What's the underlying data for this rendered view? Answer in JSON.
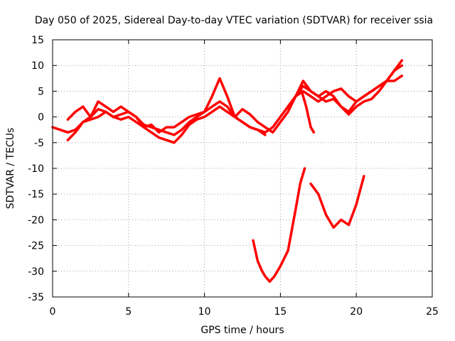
{
  "chart_data": {
    "type": "line",
    "title": "Day 050 of 2025, Sidereal Day-to-day VTEC variation (SDTVAR) for receiver ssia",
    "xlabel": "GPS time / hours",
    "ylabel": "SDTVAR / TECUs",
    "xlim": [
      0,
      25
    ],
    "ylim": [
      -35,
      15
    ],
    "xticks": [
      0,
      5,
      10,
      15,
      20,
      25
    ],
    "yticks": [
      15,
      10,
      5,
      0,
      -5,
      -10,
      -15,
      -20,
      -25,
      -30,
      -35
    ],
    "grid": true,
    "color": "#ff0000",
    "series": [
      {
        "x": [
          0,
          0.5,
          1,
          1.5,
          2,
          2.5,
          3,
          3.5,
          4,
          4.5,
          5,
          5.5,
          6,
          6.5,
          7,
          7.5,
          8,
          8.5,
          9,
          9.5,
          10,
          10.5,
          11,
          11.5,
          12,
          12.5,
          13,
          13.5,
          14,
          14.5,
          15,
          15.5,
          16,
          16.5,
          17,
          17.5,
          18,
          18.5,
          19,
          19.5,
          20,
          20.5,
          21,
          21.5,
          22,
          22.5,
          23
        ],
        "y": [
          -2,
          -2.5,
          -3,
          -2.5,
          -1,
          0,
          1.5,
          1,
          0,
          0.5,
          1,
          0,
          -1.5,
          -2,
          -2.5,
          -3,
          -3.5,
          -2.5,
          -1,
          0,
          1,
          2,
          3,
          2,
          0,
          -1,
          -2,
          -2.5,
          -3,
          -2,
          0,
          2,
          4,
          5,
          4,
          3,
          4,
          5,
          5.5,
          4,
          3,
          4,
          5,
          6,
          7,
          9,
          10
        ]
      },
      {
        "x": [
          1,
          1.5,
          2,
          2.5,
          3,
          3.5,
          4,
          4.5,
          5,
          5.5,
          6,
          6.5,
          7,
          7.5,
          8,
          8.5,
          9,
          9.5,
          10,
          10.5,
          11,
          11.5,
          12,
          12.5,
          13,
          13.5,
          14
        ],
        "y": [
          -4.5,
          -3,
          -1,
          -0.5,
          0,
          1,
          0,
          -0.5,
          0,
          -1,
          -2,
          -3,
          -4,
          -4.5,
          -5,
          -3.5,
          -1.5,
          -0.5,
          0,
          1,
          2,
          1,
          0,
          -1,
          -2,
          -2.5,
          -3.5
        ]
      },
      {
        "x": [
          1,
          1.5,
          2,
          2.5,
          3,
          3.5,
          4,
          4.5,
          5,
          5.5,
          6,
          6.5,
          7,
          7.5,
          8,
          8.5,
          9,
          9.5,
          10,
          10.5,
          11,
          11.5,
          12,
          12.5,
          13,
          13.5,
          14,
          14.5,
          15,
          15.5,
          16,
          16.5,
          17,
          17.5,
          18,
          18.5,
          19,
          19.5,
          20,
          20.5,
          21,
          21.5,
          22,
          22.5,
          23
        ],
        "y": [
          -0.5,
          1,
          2,
          0,
          3,
          2,
          1,
          2,
          1,
          0,
          -2,
          -1.5,
          -3,
          -2,
          -2,
          -1,
          0,
          0.5,
          1,
          4,
          7.5,
          4,
          0,
          1.5,
          0.5,
          -1,
          -2,
          -3,
          -1,
          1,
          4,
          7,
          5,
          4,
          3,
          3.5,
          2,
          0.5,
          2,
          3,
          3.5,
          5,
          7,
          9,
          11
        ]
      },
      {
        "x": [
          15.5,
          16,
          16.5,
          17,
          17.5,
          18,
          18.5,
          19,
          19.5,
          20,
          20.5,
          21,
          21.5,
          22,
          22.5,
          23
        ],
        "y": [
          2,
          4,
          6,
          5,
          4,
          5,
          4,
          2,
          1,
          3,
          4,
          5,
          6,
          7,
          7,
          8
        ]
      },
      {
        "x": [
          16.4,
          16.7,
          17,
          17.2
        ],
        "y": [
          5,
          2,
          -2,
          -3
        ]
      },
      {
        "x": [
          13.2,
          13.5,
          13.8,
          14,
          14.3,
          14.6,
          15,
          15.5,
          16,
          16.3,
          16.6
        ],
        "y": [
          -24,
          -28,
          -30,
          -31,
          -32,
          -31,
          -29,
          -26,
          -18,
          -13,
          -10
        ]
      },
      {
        "x": [
          17,
          17.5,
          18,
          18.5,
          19,
          19.5,
          20,
          20.5
        ],
        "y": [
          -13,
          -15,
          -19,
          -21.5,
          -20,
          -21,
          -17,
          -11.5
        ]
      }
    ]
  }
}
